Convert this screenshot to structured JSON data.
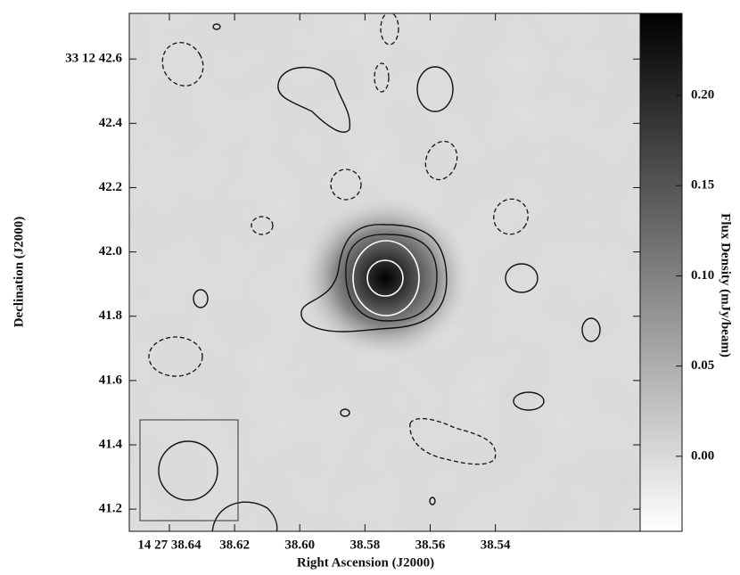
{
  "chart_data": {
    "type": "image",
    "xlabel": "Right Ascension (J2000)",
    "ylabel": "Declination (J2000)",
    "colorbar_label": "Flux Density (mJy/beam)",
    "xlim": [
      38.6523,
      38.4956
    ],
    "xticks": [
      {
        "value": 38.64,
        "label": "14 27 38.64"
      },
      {
        "value": 38.62,
        "label": "38.62"
      },
      {
        "value": 38.6,
        "label": "38.60"
      },
      {
        "value": 38.58,
        "label": "38.58"
      },
      {
        "value": 38.56,
        "label": "38.56"
      },
      {
        "value": 38.54,
        "label": "38.54"
      }
    ],
    "ylim": [
      41.131,
      42.742
    ],
    "yticks": [
      {
        "value": 42.6,
        "label": "33 12 42.6"
      },
      42.4,
      42.2,
      {
        "value": 42,
        "label": "42.0"
      },
      41.8,
      41.6,
      41.4,
      41.2
    ],
    "clim": [
      -0.0416,
      0.2455
    ],
    "cticks": [
      {
        "value": 0.2,
        "label": "0.20"
      },
      0.15,
      {
        "value": 0.1,
        "label": "0.10"
      },
      0.05,
      {
        "value": 0,
        "label": "0.00"
      }
    ]
  }
}
